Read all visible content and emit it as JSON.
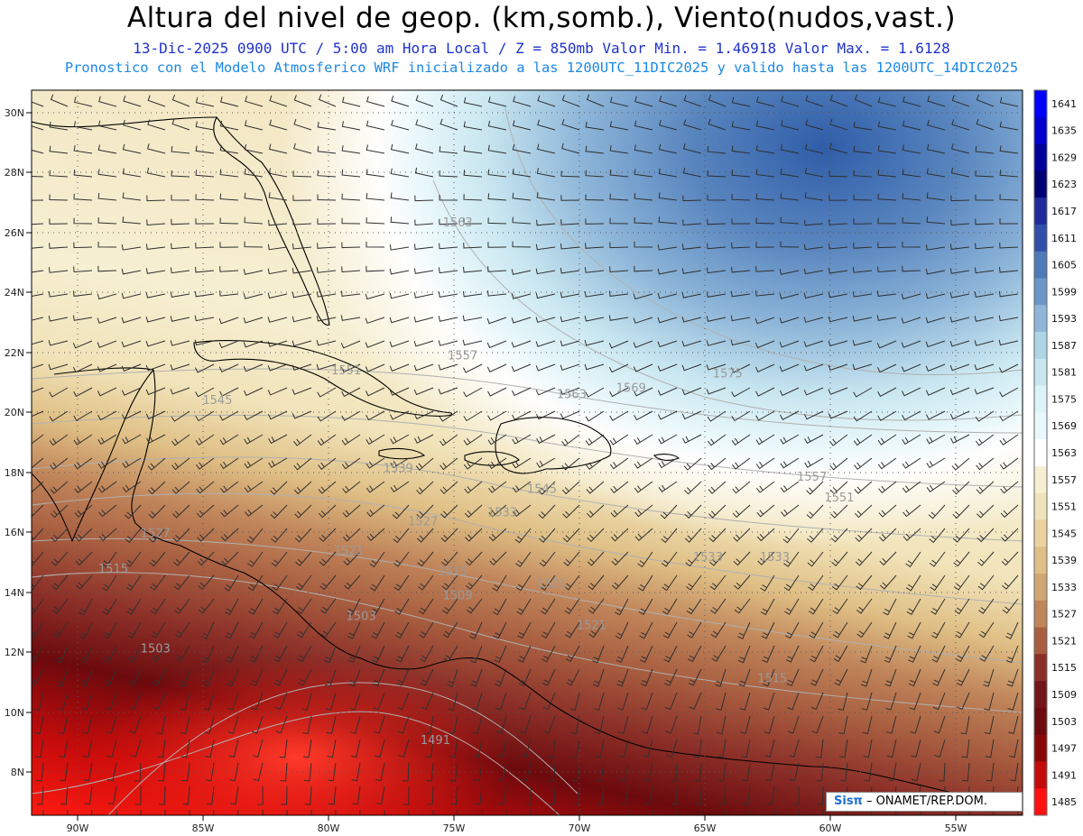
{
  "header": {
    "title": "Altura del nivel de geop. (km,somb.), Viento(nudos,vast.)",
    "line2": "13-Dic-2025  0900 UTC / 5:00 am Hora Local / Z = 850mb    Valor Min. = 1.46918  Valor Max. = 1.6128",
    "line3": "Pronostico con el Modelo Atmosferico WRF inicializado a las 1200UTC_11DIC2025 y valido hasta las  1200UTC_14DIC2025"
  },
  "map": {
    "lon_range": [
      -92.5,
      -52.5
    ],
    "lat_range": [
      6.5,
      31
    ],
    "lat_ticks": [
      "30N",
      "28N",
      "26N",
      "24N",
      "22N",
      "20N",
      "18N",
      "16N",
      "14N",
      "12N",
      "10N",
      "8N"
    ],
    "lat_values": [
      30,
      28,
      26,
      24,
      22,
      20,
      18,
      16,
      14,
      12,
      10,
      8
    ],
    "lon_ticks": [
      "90W",
      "85W",
      "80W",
      "75W",
      "70W",
      "65W",
      "60W",
      "55W"
    ],
    "lon_values": [
      -90,
      -85,
      -80,
      -75,
      -70,
      -65,
      -60,
      -55
    ],
    "contour_labels": [
      {
        "text": "1563",
        "lon": -75.3,
        "lat": 26.4
      },
      {
        "text": "1557",
        "lon": -75.1,
        "lat": 21.9
      },
      {
        "text": "1551",
        "lon": -79.8,
        "lat": 21.4
      },
      {
        "text": "1545",
        "lon": -85.0,
        "lat": 20.4
      },
      {
        "text": "1563",
        "lon": -70.7,
        "lat": 20.6
      },
      {
        "text": "1569",
        "lon": -68.3,
        "lat": 20.8
      },
      {
        "text": "1575",
        "lon": -64.4,
        "lat": 21.3
      },
      {
        "text": "1557",
        "lon": -61.0,
        "lat": 17.8
      },
      {
        "text": "1551",
        "lon": -59.9,
        "lat": 17.1
      },
      {
        "text": "1545",
        "lon": -71.9,
        "lat": 17.4
      },
      {
        "text": "1539",
        "lon": -77.7,
        "lat": 18.1
      },
      {
        "text": "1533",
        "lon": -73.5,
        "lat": 16.6
      },
      {
        "text": "1527",
        "lon": -76.7,
        "lat": 16.3
      },
      {
        "text": "1527",
        "lon": -87.5,
        "lat": 15.9
      },
      {
        "text": "1521",
        "lon": -79.7,
        "lat": 15.3
      },
      {
        "text": "1533",
        "lon": -65.2,
        "lat": 15.1
      },
      {
        "text": "1533",
        "lon": -62.5,
        "lat": 15.1
      },
      {
        "text": "1515",
        "lon": -89.2,
        "lat": 14.7
      },
      {
        "text": "1515",
        "lon": -75.5,
        "lat": 14.6
      },
      {
        "text": "1509",
        "lon": -75.3,
        "lat": 13.8
      },
      {
        "text": "1521",
        "lon": -71.5,
        "lat": 14.2
      },
      {
        "text": "1521",
        "lon": -69.9,
        "lat": 12.8
      },
      {
        "text": "1503",
        "lon": -79.2,
        "lat": 13.1
      },
      {
        "text": "1503",
        "lon": -87.5,
        "lat": 12.0
      },
      {
        "text": "1515",
        "lon": -62.6,
        "lat": 11.0
      },
      {
        "text": "1491",
        "lon": -76.2,
        "lat": 8.9
      }
    ]
  },
  "colorbar": {
    "labels": [
      "1641",
      "1635",
      "1629",
      "1623",
      "1617",
      "1611",
      "1605",
      "1599",
      "1593",
      "1587",
      "1581",
      "1575",
      "1569",
      "1563",
      "1557",
      "1551",
      "1545",
      "1539",
      "1533",
      "1527",
      "1521",
      "1515",
      "1509",
      "1503",
      "1497",
      "1491",
      "1485"
    ],
    "colors": [
      "#0000ff",
      "#0000d0",
      "#00009a",
      "#000072",
      "#1f2a9a",
      "#2f4fa8",
      "#4f7ab8",
      "#6b96c9",
      "#8eb6d9",
      "#aed5e6",
      "#c8e6f0",
      "#dcf3f8",
      "#e9f8fa",
      "#ffffff",
      "#f6efd2",
      "#f1e3b9",
      "#ead3a0",
      "#dfbf85",
      "#d2a673",
      "#c0855a",
      "#a85e40",
      "#8c2f28",
      "#74151c",
      "#6c0a0d",
      "#8a0808",
      "#c40b0b",
      "#ff1010"
    ]
  },
  "credit": {
    "brand": "Sisπ",
    "org": "– ONAMET/REP.DOM."
  }
}
